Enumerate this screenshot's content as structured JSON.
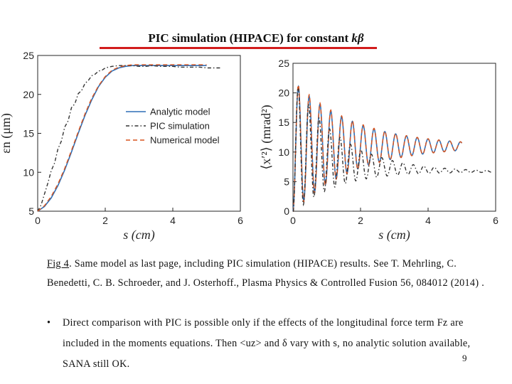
{
  "slide": {
    "title": "PIC simulation (HIPACE) for constant",
    "title_symbol": "kβ",
    "caption_fig": "Fig 4",
    "caption_text": ". Same model as last page, including PIC simulation (HIPACE) results. See  T. Mehrling, C. Benedetti, C. B. Schroeder, and J. Osterhoff., Plasma Physics  & Controlled Fusion 56, 084012 (2014) .",
    "bullet_mark": "•",
    "bullet_text": "Direct comparison with PIC is possible only if the effects of the longitudinal force term Fz are included in the moments equations. Then <uz> and  δ  vary with s, no analytic solution available, SANA still OK.",
    "page_number": "9"
  },
  "chart_data": [
    {
      "type": "line",
      "ylabel": "εn (μm)",
      "xlabel": "s (cm)",
      "xlim": [
        0,
        6
      ],
      "ylim": [
        5,
        25
      ],
      "xticks": [
        "0",
        "2",
        "4",
        "6"
      ],
      "yticks": [
        "5",
        "10",
        "15",
        "20",
        "25"
      ],
      "legend": "top-right",
      "series": [
        {
          "name": "Analytic model",
          "color": "#2f6fb6",
          "style": "solid",
          "x": [
            0,
            0.2,
            0.4,
            0.6,
            0.8,
            1.0,
            1.2,
            1.4,
            1.6,
            1.8,
            2.0,
            2.2,
            2.4,
            2.6,
            2.8,
            3.0,
            3.2,
            3.4,
            3.6,
            3.8,
            4.0,
            4.2,
            4.4,
            4.6,
            4.8,
            5.0
          ],
          "y": [
            5.0,
            5.6,
            6.7,
            8.3,
            10.3,
            12.6,
            15.0,
            17.3,
            19.3,
            21.0,
            22.2,
            23.0,
            23.4,
            23.6,
            23.7,
            23.7,
            23.7,
            23.7,
            23.7,
            23.7,
            23.7,
            23.7,
            23.7,
            23.7,
            23.7,
            23.7
          ]
        },
        {
          "name": "PIC simulation",
          "color": "#333333",
          "style": "dashdot",
          "x": [
            0,
            0.1,
            0.2,
            0.3,
            0.4,
            0.5,
            0.6,
            0.7,
            0.8,
            0.9,
            1.0,
            1.1,
            1.2,
            1.3,
            1.4,
            1.5,
            1.6,
            1.7,
            1.8,
            1.9,
            2.0,
            2.2,
            2.4,
            2.6,
            2.8,
            3.0,
            3.2,
            3.4,
            3.6,
            3.8,
            4.0,
            4.2,
            4.4,
            4.6,
            4.8,
            5.0,
            5.2,
            5.4
          ],
          "y": [
            5.0,
            5.8,
            7.2,
            8.6,
            10.2,
            11.2,
            13.0,
            14.0,
            15.8,
            16.6,
            18.3,
            18.8,
            20.1,
            20.5,
            21.4,
            21.8,
            22.4,
            22.6,
            23.0,
            23.1,
            23.4,
            23.6,
            23.7,
            23.7,
            23.7,
            23.6,
            23.6,
            23.7,
            23.6,
            23.6,
            23.6,
            23.5,
            23.5,
            23.5,
            23.5,
            23.4,
            23.4,
            23.4
          ]
        },
        {
          "name": "Numerical model",
          "color": "#d9541e",
          "style": "dashed",
          "x": [
            0,
            0.2,
            0.4,
            0.6,
            0.8,
            1.0,
            1.2,
            1.4,
            1.6,
            1.8,
            2.0,
            2.2,
            2.4,
            2.6,
            2.8,
            3.0,
            3.2,
            3.4,
            3.6,
            3.8,
            4.0,
            4.2,
            4.4,
            4.6,
            4.8,
            5.0
          ],
          "y": [
            5.0,
            5.7,
            6.9,
            8.5,
            10.5,
            12.8,
            15.2,
            17.5,
            19.5,
            21.1,
            22.3,
            23.1,
            23.5,
            23.7,
            23.8,
            23.8,
            23.8,
            23.8,
            23.8,
            23.8,
            23.8,
            23.8,
            23.8,
            23.8,
            23.8,
            23.8
          ]
        }
      ]
    },
    {
      "type": "line",
      "ylabel": "⟨x′²⟩ (mrad²)",
      "xlabel": "s (cm)",
      "xlim": [
        0,
        6
      ],
      "ylim": [
        0,
        25
      ],
      "xticks": [
        "0",
        "2",
        "4",
        "6"
      ],
      "yticks": [
        "0",
        "5",
        "10",
        "15",
        "20",
        "25"
      ],
      "series": [
        {
          "name": "Analytic model",
          "color": "#2f6fb6",
          "style": "solid",
          "osc": {
            "base": 11,
            "amp": 11,
            "period": 0.32,
            "decay": 0.55,
            "end": 5.0
          }
        },
        {
          "name": "Numerical model",
          "color": "#d9541e",
          "style": "dashed",
          "osc": {
            "base": 11,
            "amp": 11.3,
            "period": 0.32,
            "decay": 0.55,
            "end": 5.0
          }
        },
        {
          "name": "PIC simulation",
          "color": "#333333",
          "style": "dashdot",
          "osc": {
            "base_start": 11,
            "base_end": 6.6,
            "amp": 11.5,
            "period": 0.31,
            "decay": 0.75,
            "end": 5.9
          }
        }
      ]
    }
  ]
}
